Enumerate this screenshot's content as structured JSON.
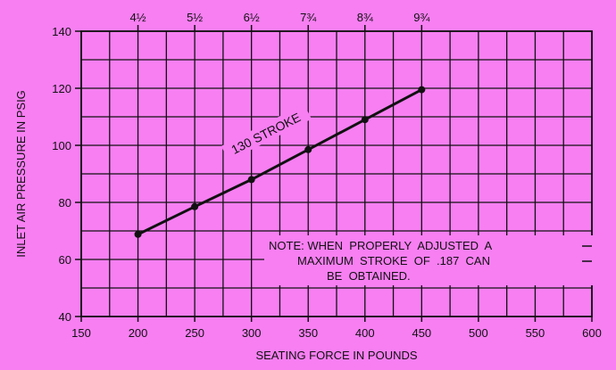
{
  "chart_data": {
    "type": "line",
    "title": "",
    "xlabel": "SEATING FORCE IN POUNDS",
    "ylabel": "INLET AIR PRESSURE IN PSIG",
    "xlim": [
      150,
      600
    ],
    "ylim": [
      40,
      140
    ],
    "x_ticks": [
      150,
      200,
      250,
      300,
      350,
      400,
      450,
      500,
      550,
      600
    ],
    "y_ticks": [
      40,
      60,
      80,
      100,
      120,
      140
    ],
    "top_ticks": [
      {
        "x": 200,
        "label": "4½"
      },
      {
        "x": 250,
        "label": "5½"
      },
      {
        "x": 300,
        "label": "6½"
      },
      {
        "x": 350,
        "label": "7¾"
      },
      {
        "x": 400,
        "label": "8¾"
      },
      {
        "x": 450,
        "label": "9¾"
      }
    ],
    "grid": true,
    "series": [
      {
        "name": "130 STROKE",
        "x": [
          200,
          250,
          300,
          350,
          400,
          450
        ],
        "y": [
          68.8,
          78.5,
          88,
          98.5,
          109,
          119.5
        ]
      }
    ],
    "annotations": [
      {
        "lines": [
          "NOTE: WHEN  PROPERLY  ADJUSTED  A",
          "MAXIMUM  STROKE  OF  .187  CAN",
          "BE  OBTAINED."
        ]
      }
    ],
    "colors": {
      "background": "#f77ff2",
      "ink": "#111111"
    }
  }
}
